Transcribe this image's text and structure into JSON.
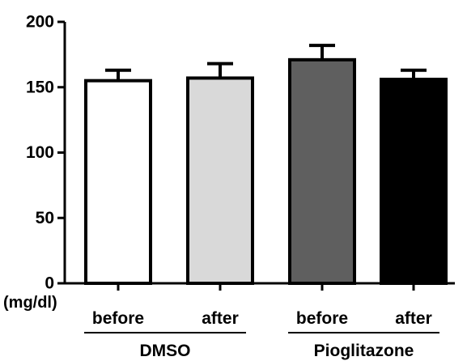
{
  "chart_data": {
    "type": "bar",
    "categories": [
      "before",
      "after",
      "before",
      "after"
    ],
    "groups": [
      {
        "label": "DMSO",
        "categories": [
          0,
          1
        ]
      },
      {
        "label": "Pioglitazone",
        "categories": [
          2,
          3
        ]
      }
    ],
    "values": [
      155,
      157,
      171,
      156
    ],
    "errors": [
      8,
      11,
      11,
      7
    ],
    "bar_colors": [
      "#ffffff",
      "#d9d9d9",
      "#5f5f5f",
      "#000000"
    ],
    "edge_color": "#000000",
    "ylabel": "(mg/dl)",
    "ylim": [
      0,
      200
    ],
    "yticks": [
      0,
      50,
      100,
      150,
      200
    ],
    "grid": false,
    "legend": "none"
  }
}
